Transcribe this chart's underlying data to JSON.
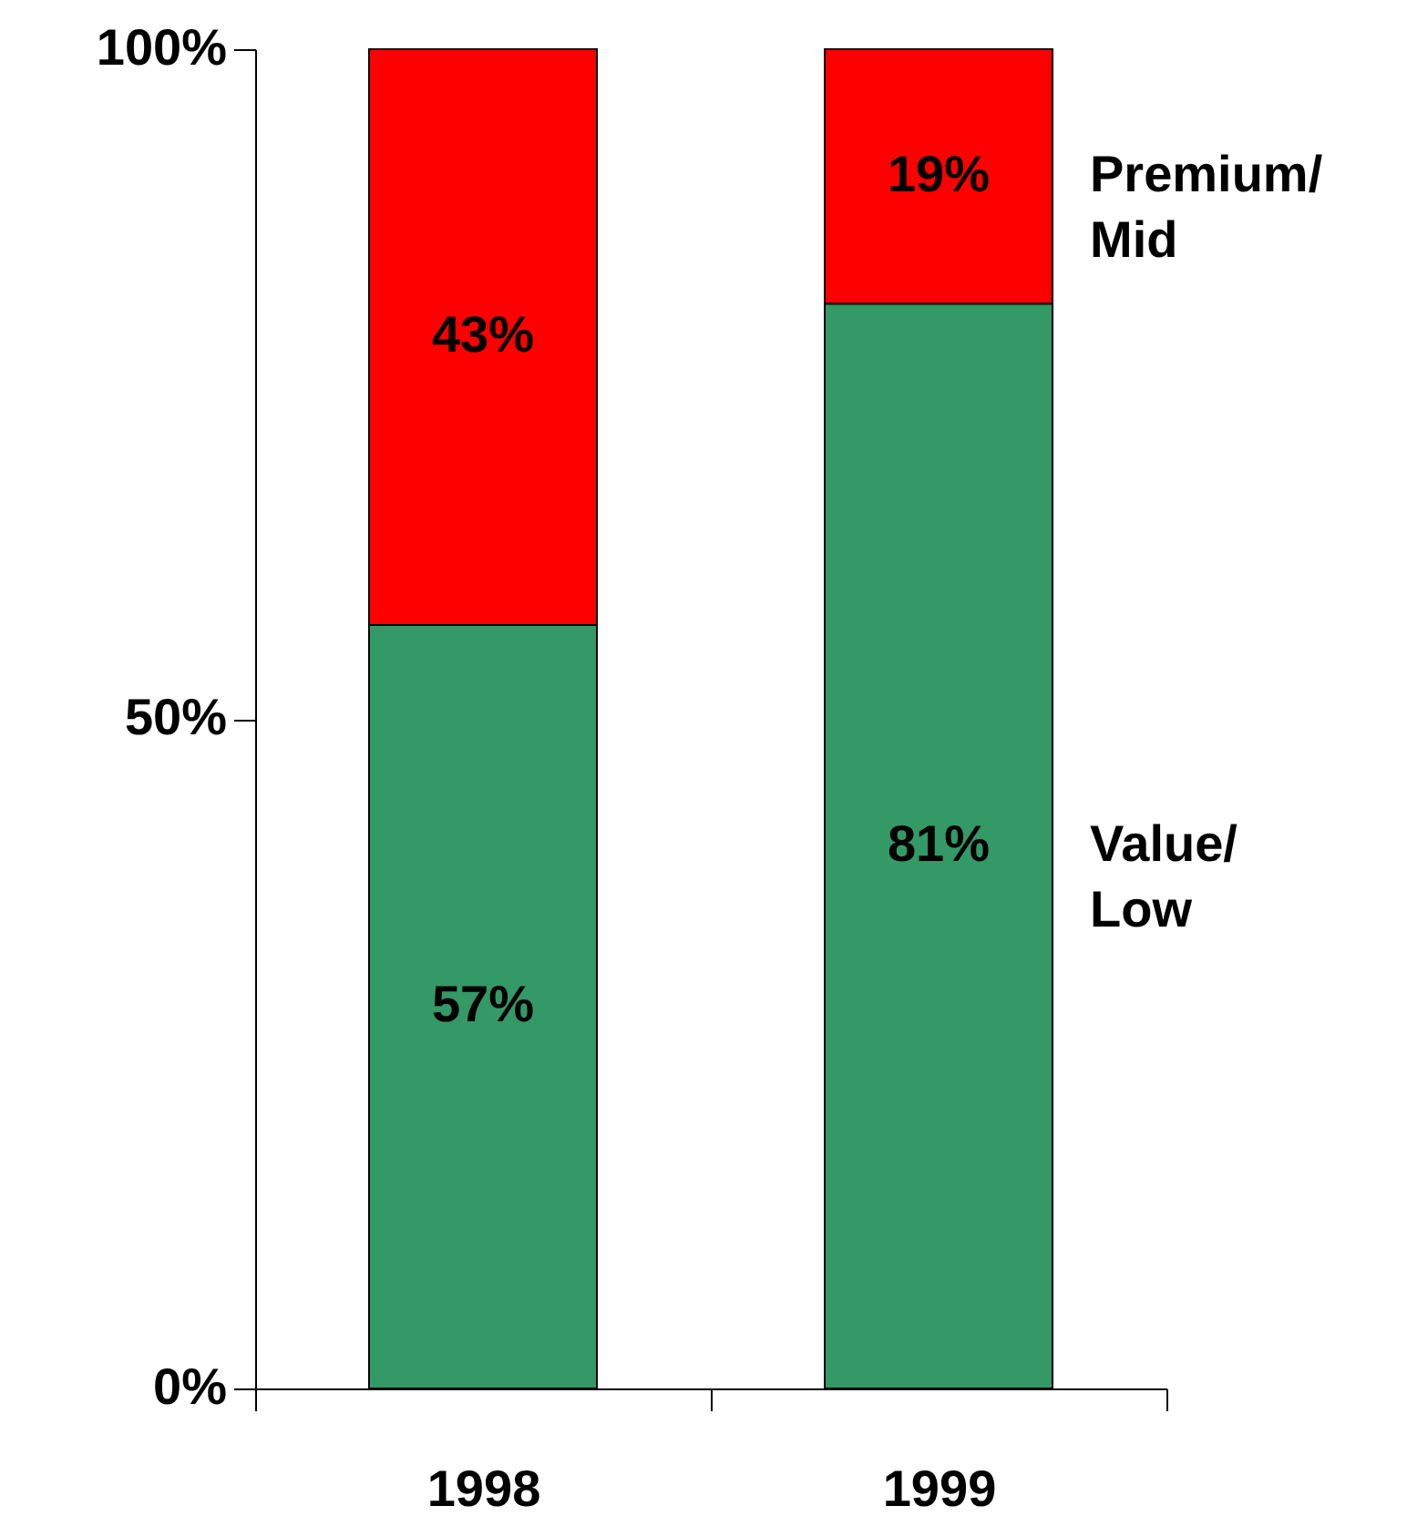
{
  "chart_data": {
    "type": "bar",
    "stacked": true,
    "categories": [
      "1998",
      "1999"
    ],
    "series": [
      {
        "name": "Value/ Low",
        "color": "#339966",
        "values": [
          57,
          81
        ],
        "value_labels": [
          "57%",
          "81%"
        ]
      },
      {
        "name": "Premium/ Mid",
        "color": "#ff0000",
        "values": [
          43,
          19
        ],
        "value_labels": [
          "43%",
          "19%"
        ]
      }
    ],
    "ylim": [
      0,
      100
    ],
    "yticks": [
      {
        "value": 0,
        "label": "0%"
      },
      {
        "value": 50,
        "label": "50%"
      },
      {
        "value": 100,
        "label": "100%"
      }
    ],
    "grid": false
  }
}
